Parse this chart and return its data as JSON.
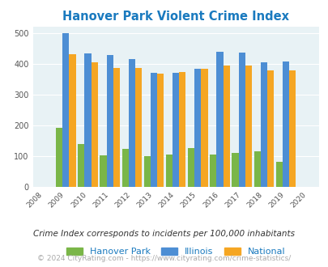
{
  "title": "Hanover Park Violent Crime Index",
  "years": [
    2009,
    2010,
    2011,
    2012,
    2013,
    2014,
    2015,
    2016,
    2017,
    2018,
    2019
  ],
  "hanover_park": [
    193,
    138,
    102,
    124,
    101,
    106,
    125,
    105,
    110,
    115,
    82
  ],
  "illinois": [
    498,
    434,
    428,
    414,
    371,
    369,
    383,
    438,
    437,
    404,
    408
  ],
  "national": [
    430,
    404,
    387,
    387,
    367,
    374,
    383,
    395,
    394,
    379,
    379
  ],
  "bar_color_hp": "#7ab648",
  "bar_color_il": "#4d8ed4",
  "bar_color_na": "#f5a623",
  "bg_color": "#e8f2f5",
  "title_color": "#1a7abf",
  "xlim": [
    2007.5,
    2020.5
  ],
  "ylim": [
    0,
    520
  ],
  "yticks": [
    0,
    100,
    200,
    300,
    400,
    500
  ],
  "footer1": "Crime Index corresponds to incidents per 100,000 inhabitants",
  "footer2": "© 2024 CityRating.com - https://www.cityrating.com/crime-statistics/",
  "legend_labels": [
    "Hanover Park",
    "Illinois",
    "National"
  ],
  "bar_width": 0.3
}
